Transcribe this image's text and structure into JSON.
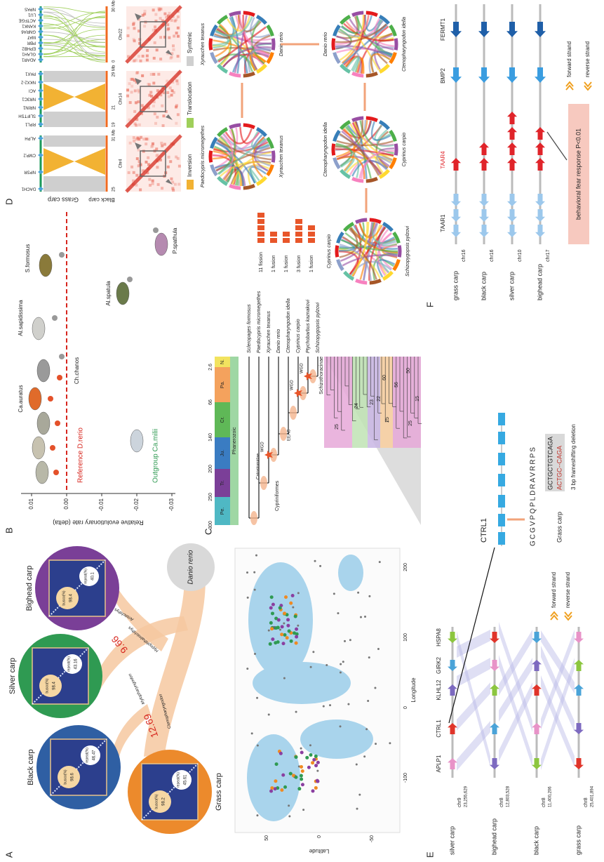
{
  "labels": [
    "A",
    "B",
    "C",
    "D",
    "E",
    "F"
  ],
  "a": {
    "species": [
      {
        "name": "Black carp",
        "busco": "98.6",
        "repeat": "46.47"
      },
      {
        "name": "Silver carp",
        "busco": "98.4",
        "repeat": "43.16"
      },
      {
        "name": "Bighead carp",
        "busco": "98.4",
        "repeat": "40.1"
      },
      {
        "name": "Grass carp",
        "busco": "98.2",
        "repeat": "45.61"
      }
    ],
    "busco_label": "busco(%)",
    "repeat_label": "repeat(%)",
    "outgroup": "Danio rerio",
    "divergences": [
      "12.69",
      "9.66"
    ],
    "genera": [
      "Ctenopharyngodon",
      "Mylopharyngodon",
      "Hypophthalmichthys",
      "Aristichthys"
    ],
    "map": {
      "y_label": "Latitude",
      "x_label": "Longitude",
      "yticks": [
        "50",
        "0",
        "-50"
      ],
      "xticks": [
        "-100",
        "0",
        "100",
        "200"
      ]
    }
  },
  "b": {
    "y_label": "Relative evolutionary rate (delta)",
    "yticks": [
      "0.01",
      "0.00",
      "-0.01",
      "-0.02",
      "-0.03"
    ],
    "reference": "Reference D.rerio",
    "outgroup": "Outgroup Ca.milii",
    "species": [
      "Ca.auratus",
      "Ch.chanos",
      "Al.sapidissima",
      "S.formosus",
      "Al.spatula",
      "P.spathula"
    ]
  },
  "c": {
    "times": [
      "300",
      "250",
      "200",
      "140",
      "66",
      "2.6"
    ],
    "periods": [
      "Pe.",
      "Tr.",
      "Ju.",
      "Cr.",
      "Pa.",
      "N."
    ],
    "eon": "Phanerozoic",
    "taxa": [
      "Scleropages formosus",
      "Paedocypris micromegethes",
      "Xyrauchen texanus",
      "Danio rerio",
      "Ctenopharyngodon idella",
      "Cyprinus carpio",
      "Ptychobarbus kaznakovi",
      "Schizopygopsis pylzovi"
    ],
    "clades": [
      "Cypriniformes",
      "Catostomidae",
      "EEAC",
      "Schizothoracinae"
    ],
    "wgd": "WGD",
    "events": [
      "11 fission",
      "1 fusion",
      "1 fusion",
      "3 fusion",
      "1 fusion"
    ],
    "node_counts": [
      "25",
      "24",
      "23",
      "22",
      "25",
      "60",
      "56",
      "50",
      "25",
      "15"
    ],
    "circos": [
      [
        "Paedocypris micromegethes",
        "Xyrauchen texanus"
      ],
      [
        "Xyrauchen texanus",
        "Danio rerio"
      ],
      [
        "Danio rerio",
        "Ctenopharyngodon idella"
      ],
      [
        "Ctenopharyngodon idella",
        "Cyprinus carpio"
      ],
      [
        "Cyprinus carpio",
        "Schizopygopsis pylzovi"
      ]
    ]
  },
  "d": {
    "species": [
      "Grass carp",
      "Black carp"
    ],
    "blocks": [
      {
        "chr": "Chr4",
        "genes": [
          "DACH1",
          "NPSR",
          "CMP.2",
          "ALPH"
        ],
        "scale": [
          "25",
          "31 Mb"
        ]
      },
      {
        "chr": "Chr14",
        "genes": [
          "RPL1",
          "SLIFTSH",
          "NRIN1",
          "NR3C1",
          "ACI",
          "NKX2-2",
          "PAX1"
        ],
        "scale": [
          "19",
          "21",
          "29 Mb"
        ]
      },
      {
        "chr": "Chr22",
        "genes": [
          "ADAR1",
          "GLAH1",
          "EPHB2",
          "PBR",
          "MAT",
          "GNRA6",
          "KANK1",
          "ACTFGE",
          "LU1",
          "NPAS"
        ],
        "scale": [
          "0",
          "30 Mb"
        ]
      }
    ],
    "legend": [
      "Inversion",
      "Translocation",
      "Syntenic"
    ]
  },
  "e": {
    "rows": [
      {
        "species": "silver carp",
        "chr": "chr9",
        "pos": "23,255,629"
      },
      {
        "species": "bighead carp",
        "chr": "chr8",
        "pos": "12,803,528"
      },
      {
        "species": "black carp",
        "chr": "chr8",
        "pos": "11,400,206"
      },
      {
        "species": "grass carp",
        "chr": "chr8",
        "pos": "25,401,894"
      }
    ],
    "genes": [
      "APLP1",
      "CTRL1",
      "KLHL12",
      "GIRK2",
      "HSPA8"
    ],
    "legend": [
      "forward strand",
      "reverse strand"
    ]
  },
  "ctrl1": {
    "gene": "CTRL1",
    "protein": "GCGVPQPLDRAVRRPS",
    "ref": "GCTGCTGTCAGA",
    "alt": "ACTGC--CAGA",
    "species": "Grass carp",
    "note": "3 bp frameshifting deletion"
  },
  "f": {
    "genes": [
      "TAAR1",
      "TAAR4",
      "BMP2",
      "FERMT1"
    ],
    "rows": [
      {
        "species": "grass carp",
        "chr": "chr16"
      },
      {
        "species": "black carp",
        "chr": "chr16"
      },
      {
        "species": "silver carp",
        "chr": "chr10"
      },
      {
        "species": "bighead carp",
        "chr": "chr17"
      }
    ],
    "legend": [
      "forward strand",
      "reverse strand"
    ],
    "note": "behavioral fear response P<0.01"
  }
}
